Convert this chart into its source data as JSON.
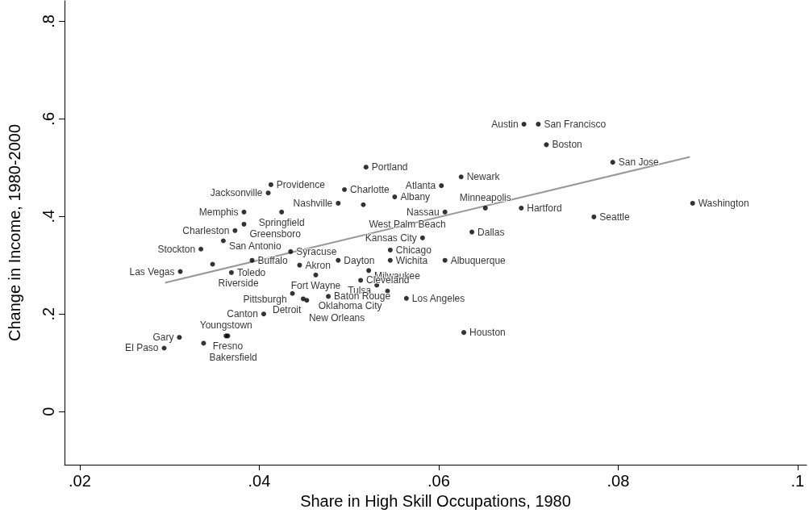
{
  "chart_data": {
    "type": "scatter",
    "xlabel": "Share in High Skill Occupations, 1980",
    "ylabel": "Change in Income, 1980-2000",
    "xlim": [
      0.0183,
      0.101
    ],
    "ylim": [
      -0.109,
      0.842
    ],
    "xticks": [
      {
        "value": 0.02,
        "label": ".02"
      },
      {
        "value": 0.04,
        "label": ".04"
      },
      {
        "value": 0.06,
        "label": ".06"
      },
      {
        "value": 0.08,
        "label": ".08"
      },
      {
        "value": 0.1,
        "label": ".1"
      }
    ],
    "yticks": [
      0,
      {
        "value": 0.2,
        "label": ".2"
      },
      {
        "value": 0.4,
        "label": ".4"
      },
      {
        "value": 0.6,
        "label": ".6"
      },
      {
        "value": 0.8,
        "label": ".8"
      }
    ],
    "grid": false,
    "series": [
      {
        "color": "#000000",
        "marker": "circle",
        "x": [
          0.0695,
          0.0711,
          0.072,
          0.0794,
          0.0883,
          0.0773,
          0.0692,
          0.0652,
          0.0625,
          0.0603,
          0.0519,
          0.0413,
          0.0495,
          0.041,
          0.0488,
          0.0383,
          0.0425,
          0.0383,
          0.0373,
          0.036,
          0.0335,
          0.0348,
          0.0312,
          0.0369,
          0.0392,
          0.0445,
          0.0488,
          0.0546,
          0.0607,
          0.0463,
          0.0522,
          0.0513,
          0.0531,
          0.0543,
          0.0564,
          0.0477,
          0.0437,
          0.0449,
          0.0453,
          0.0405,
          0.0628,
          0.0311,
          0.0363,
          0.0365,
          0.0338,
          0.0294,
          0.0637,
          0.0582,
          0.0546,
          0.0435,
          0.0607,
          0.0551,
          0.0516
        ],
        "values": [
          0.589,
          0.589,
          0.547,
          0.511,
          0.427,
          0.399,
          0.417,
          0.417,
          0.481,
          0.463,
          0.501,
          0.465,
          0.455,
          0.448,
          0.427,
          0.409,
          0.409,
          0.384,
          0.371,
          0.35,
          0.333,
          0.302,
          0.287,
          0.285,
          0.31,
          0.3,
          0.31,
          0.31,
          0.31,
          0.28,
          0.289,
          0.269,
          0.259,
          0.247,
          0.232,
          0.236,
          0.242,
          0.231,
          0.228,
          0.2,
          0.162,
          0.152,
          0.155,
          0.155,
          0.14,
          0.13,
          0.368,
          0.356,
          0.331,
          0.328,
          0.409,
          0.44,
          0.424
        ],
        "value_labels": [
          "Austin",
          "San Francisco",
          "Boston",
          "San Jose",
          "Washington",
          "Seattle",
          "Hartford",
          "Minneapolis",
          "Newark",
          "Atlanta",
          "Portland",
          "Providence",
          "Charlotte",
          "Jacksonville",
          "Nashville",
          "Memphis",
          "Springfield",
          "Greensboro",
          "Charleston",
          "San Antonio",
          "Stockton",
          "Riverside",
          "Las Vegas",
          "Toledo",
          "Buffalo",
          "Akron",
          "Dayton",
          "Wichita",
          "Albuquerque",
          "Fort Wayne",
          "Milwaukee",
          "Cleveland",
          "Tulsa",
          "Oklahoma City",
          "Los Angeles",
          "Baton Rouge",
          "Pittsburgh",
          "New Orleans",
          "Detroit",
          "Canton",
          "Houston",
          "Gary",
          "Youngstown",
          "Fresno",
          "Bakersfield",
          "El Paso",
          "Dallas",
          "Kansas City",
          "Chicago",
          "Syracuse",
          "Nassau",
          "Albany",
          "West Palm Beach"
        ]
      },
      {
        "type": "line",
        "color": "#999999",
        "x": [
          0.0295,
          0.088
        ],
        "values": [
          0.264,
          0.522
        ]
      }
    ]
  }
}
